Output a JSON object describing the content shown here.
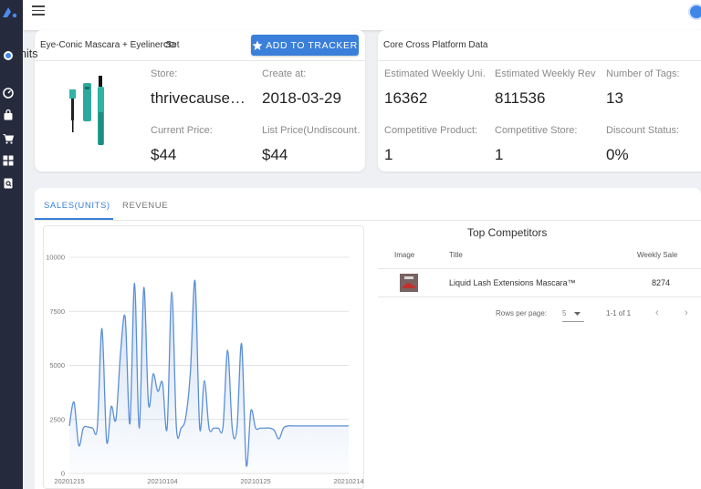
{
  "sidebar": {
    "items": [
      {
        "icon": "target-icon"
      },
      {
        "icon": "dashboard-icon"
      },
      {
        "icon": "bag-icon"
      },
      {
        "icon": "cart-icon"
      },
      {
        "icon": "grid-icon"
      },
      {
        "icon": "document-search-icon"
      }
    ]
  },
  "product": {
    "title": "Eye-Conic Mascara + Eyeliner Set",
    "add_button": "ADD TO TRACKER",
    "store_label": "Store:",
    "store_value": "thrivecause…",
    "create_label": "Create at:",
    "create_value": "2018-03-29",
    "current_price_label": "Current Price:",
    "current_price_value": "$44",
    "list_price_label": "List Price(Undiscount…",
    "list_price_value": "$44"
  },
  "platform": {
    "title": "Core Cross Platform Data",
    "weekly_units_label": "Estimated Weekly Uni…",
    "weekly_units_value": "16362",
    "weekly_revenue_label": "Estimated Weekly Rev…",
    "weekly_revenue_value": "811536",
    "tags_label": "Number of Tags:",
    "tags_value": "13",
    "comp_product_label": "Competitive Product:",
    "comp_product_value": "1",
    "comp_store_label": "Competitive Store:",
    "comp_store_value": "1",
    "discount_label": "Discount Status:",
    "discount_value": "0%"
  },
  "tabs": {
    "sales": "SALES(UNITS)",
    "revenue": "REVENUE"
  },
  "competitors": {
    "title": "Top Competitors",
    "headers": {
      "image": "Image",
      "title": "Title",
      "weekly_sale": "Weekly Sale"
    },
    "rows": [
      {
        "title": "Liquid Lash Extensions Mascara™",
        "weekly_sale": "8274"
      }
    ],
    "rows_per_page_label": "Rows per page:",
    "rows_per_page_value": "5",
    "page_info": "1-1 of 1"
  },
  "colors": {
    "accent": "#3a7fd9",
    "sidebar": "#262a3d",
    "line": "#5b8fd6"
  },
  "chart_data": {
    "type": "area",
    "title": "Units",
    "ylim": [
      0,
      10000
    ],
    "y_ticks": [
      "10000",
      "7500",
      "5000",
      "2500",
      "0"
    ],
    "x_ticks": [
      "20201215",
      "20210104",
      "20210125",
      "20210214"
    ],
    "grid": true,
    "values": [
      2200,
      3300,
      1300,
      2100,
      2150,
      2100,
      2150,
      6700,
      1500,
      3100,
      2500,
      5600,
      7200,
      2300,
      8800,
      2100,
      8600,
      3200,
      4600,
      3800,
      4200,
      2100,
      8400,
      2100,
      2100,
      2600,
      4700,
      8900,
      2100,
      4300,
      2100,
      2100,
      2100,
      2150,
      5700,
      2050,
      2100,
      6000,
      400,
      2900,
      2100,
      2100,
      2100,
      2100,
      2000,
      1600,
      2100,
      2200,
      2200,
      2200,
      2200,
      2200,
      2200,
      2200,
      2200,
      2200,
      2200,
      2200,
      2200,
      2200,
      2200
    ]
  }
}
